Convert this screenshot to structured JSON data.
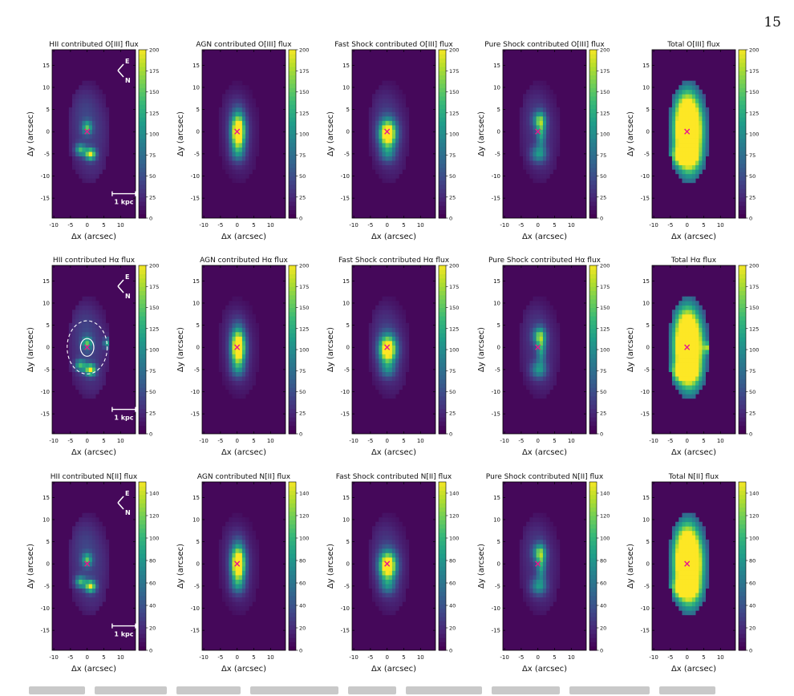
{
  "page_number": "15",
  "colors": {
    "viridis": [
      "#440154",
      "#482878",
      "#3e4989",
      "#31688e",
      "#26828e",
      "#1f9e89",
      "#35b779",
      "#6ece58",
      "#b5de2b",
      "#fde725"
    ],
    "center_marker": "#e8168f",
    "annotation": "#ffffff"
  },
  "annotations": {
    "compass_e": "E",
    "compass_n": "N",
    "scalebar_label": "1 kpc"
  },
  "chart_data": {
    "type": "heatmap",
    "layout": "3x5 grid of flux maps",
    "xlabel": "Δx (arcsec)",
    "ylabel": "Δy (arcsec)",
    "x_ticks": [
      -10,
      -5,
      0,
      5,
      10
    ],
    "y_ticks": [
      -15,
      -10,
      -5,
      0,
      5,
      10,
      15
    ],
    "xlim": [
      -10.5,
      14.5
    ],
    "ylim": [
      -19.5,
      18.5
    ],
    "colormap": "viridis",
    "rows": [
      {
        "line": "O[III]",
        "colorbar_max": 200,
        "colorbar_ticks": [
          0,
          25,
          50,
          75,
          100,
          125,
          150,
          175,
          200
        ],
        "panels": [
          {
            "title": "HII contributed O[III] flux",
            "source": "HII",
            "compass": true,
            "scalebar": true
          },
          {
            "title": "AGN contributed O[III] flux",
            "source": "AGN"
          },
          {
            "title": "Fast Shock contributed O[III] flux",
            "source": "FastShock"
          },
          {
            "title": "Pure Shock contributed O[III] flux",
            "source": "PureShock"
          },
          {
            "title": "Total O[III] flux",
            "source": "Total"
          }
        ]
      },
      {
        "line": "Hα",
        "colorbar_max": 200,
        "colorbar_ticks": [
          0,
          25,
          50,
          75,
          100,
          125,
          150,
          175,
          200
        ],
        "panels": [
          {
            "title": "HII contributed Hα flux",
            "source": "HII",
            "compass": true,
            "scalebar": true,
            "circles": true
          },
          {
            "title": "AGN contributed Hα flux",
            "source": "AGN"
          },
          {
            "title": "Fast Shock contributed Hα flux",
            "source": "FastShock"
          },
          {
            "title": "Pure Shock contributed Hα flux",
            "source": "PureShock"
          },
          {
            "title": "Total Hα flux",
            "source": "Total"
          }
        ]
      },
      {
        "line": "N[II]",
        "colorbar_max": 150,
        "colorbar_ticks": [
          0,
          20,
          40,
          60,
          80,
          100,
          120,
          140
        ],
        "panels": [
          {
            "title": "HII contributed N[II] flux",
            "source": "HII",
            "compass": true,
            "scalebar": true
          },
          {
            "title": "AGN contributed N[II] flux",
            "source": "AGN"
          },
          {
            "title": "Fast Shock contributed N[II] flux",
            "source": "FastShock"
          },
          {
            "title": "Pure Shock contributed N[II] flux",
            "source": "PureShock"
          },
          {
            "title": "Total N[II] flux",
            "source": "Total"
          }
        ]
      }
    ],
    "center_marker": {
      "x": 0,
      "y": 0,
      "symbol": "×"
    },
    "circles_arcsec": {
      "inner_radius": 2,
      "outer_radius": 6,
      "center": [
        0,
        0
      ]
    }
  }
}
